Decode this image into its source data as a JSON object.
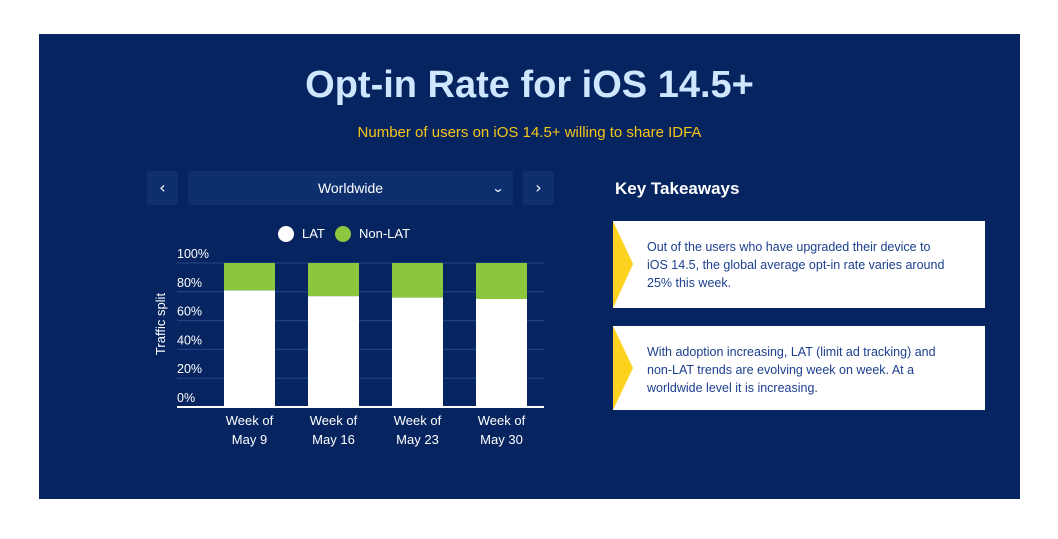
{
  "title": "Opt-in Rate for iOS 14.5+",
  "subtitle": "Number of users on iOS 14.5+ willing to share IDFA",
  "nav": {
    "prev_icon": "chevron-left-icon",
    "next_icon": "chevron-right-icon",
    "prev_glyph": "‹",
    "next_glyph": "›",
    "dropdown_glyph": "⌄"
  },
  "region_select": {
    "value": "Worldwide"
  },
  "colors": {
    "background": "#062560",
    "lat": "#ffffff",
    "non_lat": "#8cc63f",
    "title": "#cfe6ff",
    "subtitle": "#f5c518",
    "accent": "#ffd21f"
  },
  "chart_data": {
    "type": "bar",
    "stacked": true,
    "ylabel": "Traffic split",
    "ylim": [
      0,
      100
    ],
    "yticks": [
      "0%",
      "20%",
      "40%",
      "60%",
      "80%",
      "100%"
    ],
    "categories": [
      [
        "Week of",
        "May 9"
      ],
      [
        "Week of",
        "May 16"
      ],
      [
        "Week of",
        "May 23"
      ],
      [
        "Week of",
        "May 30"
      ]
    ],
    "series": [
      {
        "name": "LAT",
        "values": [
          81,
          77,
          76,
          75
        ]
      },
      {
        "name": "Non-LAT",
        "values": [
          19,
          23,
          24,
          25
        ]
      }
    ],
    "legend": "top-center",
    "grid": true
  },
  "takeaways": {
    "title": "Key Takeaways",
    "items": [
      "Out of the users who have upgraded their device to iOS 14.5, the global average opt-in rate varies around 25% this week.",
      "With adoption increasing, LAT (limit ad tracking) and non-LAT trends are evolving week on week. At a worldwide level it is increasing."
    ]
  }
}
